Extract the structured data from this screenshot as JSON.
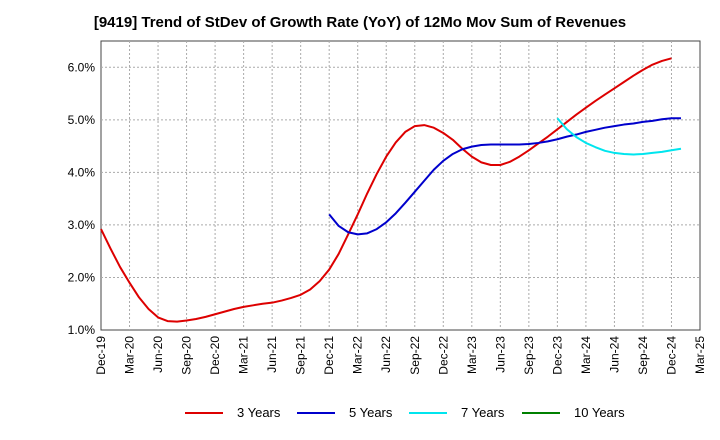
{
  "chart_data": {
    "type": "line",
    "title": "[9419]  Trend of StDev of Growth Rate (YoY) of 12Mo Mov Sum of Revenues",
    "xlabel": "",
    "ylabel": "",
    "ylim": [
      1.0,
      6.5
    ],
    "yticks": [
      1.0,
      2.0,
      3.0,
      4.0,
      5.0,
      6.0
    ],
    "ytick_labels": [
      "1.0%",
      "2.0%",
      "3.0%",
      "4.0%",
      "5.0%",
      "6.0%"
    ],
    "x_categories": [
      "Dec-19",
      "Mar-20",
      "Jun-20",
      "Sep-20",
      "Dec-20",
      "Mar-21",
      "Jun-21",
      "Sep-21",
      "Dec-21",
      "Mar-22",
      "Jun-22",
      "Sep-22",
      "Dec-22",
      "Mar-23",
      "Jun-23",
      "Sep-23",
      "Dec-23",
      "Mar-24",
      "Jun-24",
      "Sep-24",
      "Dec-24",
      "Mar-25"
    ],
    "grid": true,
    "legend_position": "bottom",
    "series": [
      {
        "name": "3 Years",
        "color": "#dd0000",
        "start_index": 0,
        "values": [
          2.92,
          2.55,
          2.2,
          1.9,
          1.62,
          1.4,
          1.24,
          1.17,
          1.16,
          1.18,
          1.21,
          1.25,
          1.3,
          1.35,
          1.4,
          1.44,
          1.47,
          1.5,
          1.52,
          1.56,
          1.61,
          1.67,
          1.77,
          1.93,
          2.15,
          2.45,
          2.82,
          3.2,
          3.6,
          3.97,
          4.3,
          4.57,
          4.77,
          4.88,
          4.9,
          4.85,
          4.75,
          4.62,
          4.45,
          4.3,
          4.19,
          4.14,
          4.14,
          4.2,
          4.3,
          4.42,
          4.55,
          4.68,
          4.82,
          4.96,
          5.1,
          5.23,
          5.36,
          5.48,
          5.6,
          5.72,
          5.84,
          5.95,
          6.05,
          6.12,
          6.17
        ]
      },
      {
        "name": "5 Years",
        "color": "#0000cc",
        "start_index": 24,
        "values": [
          3.2,
          2.98,
          2.86,
          2.82,
          2.84,
          2.92,
          3.05,
          3.22,
          3.42,
          3.63,
          3.84,
          4.05,
          4.22,
          4.35,
          4.44,
          4.49,
          4.52,
          4.53,
          4.53,
          4.53,
          4.53,
          4.54,
          4.56,
          4.59,
          4.63,
          4.68,
          4.72,
          4.77,
          4.81,
          4.85,
          4.88,
          4.91,
          4.93,
          4.96,
          4.98,
          5.01,
          5.03,
          5.03
        ]
      },
      {
        "name": "7 Years",
        "color": "#00e5ee",
        "start_index": 48,
        "values": [
          5.03,
          4.82,
          4.67,
          4.56,
          4.48,
          4.41,
          4.37,
          4.35,
          4.34,
          4.35,
          4.37,
          4.39,
          4.42,
          4.45
        ]
      },
      {
        "name": "10 Years",
        "color": "#008000",
        "start_index": 0,
        "values": []
      }
    ]
  }
}
